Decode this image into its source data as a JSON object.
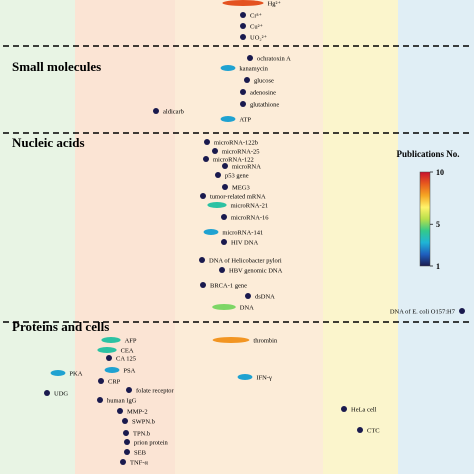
{
  "chart_data": {
    "type": "scatter",
    "colorbar": {
      "title": "Publications No.",
      "ticks": [
        1,
        5,
        10
      ],
      "range": [
        1,
        10
      ],
      "colors": [
        "#1a1a4e",
        "#1f5fbf",
        "#1fb5d6",
        "#33c98a",
        "#b8e04a",
        "#fff36a",
        "#f5a623",
        "#e85a1e",
        "#c8102e"
      ]
    },
    "background_bands": [
      {
        "color": "#e8f4e4"
      },
      {
        "color": "#fbe4d4"
      },
      {
        "color": "#fcecd8"
      },
      {
        "color": "#fbf5cc"
      },
      {
        "color": "#e0eef5"
      },
      {
        "color": "#f3f8fb"
      }
    ],
    "groups": [
      {
        "name": "",
        "points": [
          {
            "label": "Hg²⁺",
            "count": 9
          },
          {
            "label": "Cr³⁺",
            "count": 1
          },
          {
            "label": "Cu²⁺",
            "count": 1
          },
          {
            "label": "UO₂²⁺",
            "count": 1
          }
        ]
      },
      {
        "name": "Small molecules",
        "points": [
          {
            "label": "ochratoxin A",
            "count": 1
          },
          {
            "label": "kanamycin",
            "count": 3
          },
          {
            "label": "glucose",
            "count": 1
          },
          {
            "label": "adenosine",
            "count": 1
          },
          {
            "label": "glutathione",
            "count": 1
          },
          {
            "label": "aldicarb",
            "count": 1
          },
          {
            "label": "ATP",
            "count": 3
          }
        ]
      },
      {
        "name": "Nucleic acids",
        "points": [
          {
            "label": "microRNA-122b",
            "count": 1
          },
          {
            "label": "microRNA-25",
            "count": 1
          },
          {
            "label": "microRNA-122",
            "count": 1
          },
          {
            "label": "microRNA",
            "count": 1
          },
          {
            "label": "p53 gene",
            "count": 1
          },
          {
            "label": "MEG3",
            "count": 1
          },
          {
            "label": "tumor-related mRNA",
            "count": 1
          },
          {
            "label": "microRNA-21",
            "count": 4
          },
          {
            "label": "microRNA-16",
            "count": 1
          },
          {
            "label": "microRNA-141",
            "count": 3
          },
          {
            "label": "HIV DNA",
            "count": 1
          },
          {
            "label": "DNA of Helicobacter pylori",
            "count": 1
          },
          {
            "label": "HBV genomic DNA",
            "count": 1
          },
          {
            "label": "BRCA-1 gene",
            "count": 1
          },
          {
            "label": "dsDNA",
            "count": 1
          },
          {
            "label": "DNA",
            "count": 5
          },
          {
            "label": "DNA of E. coli O157:H7",
            "count": 1
          }
        ]
      },
      {
        "name": "Proteins and cells",
        "points": [
          {
            "label": "AFP",
            "count": 4
          },
          {
            "label": "thrombin",
            "count": 8
          },
          {
            "label": "CEA",
            "count": 4
          },
          {
            "label": "CA 125",
            "count": 1
          },
          {
            "label": "PKA",
            "count": 3
          },
          {
            "label": "PSA",
            "count": 3
          },
          {
            "label": "IFN-γ",
            "count": 3
          },
          {
            "label": "CRP",
            "count": 1
          },
          {
            "label": "UDG",
            "count": 1
          },
          {
            "label": "folate receptor",
            "count": 1
          },
          {
            "label": "human IgG",
            "count": 1
          },
          {
            "label": "HeLa cell",
            "count": 1
          },
          {
            "label": "MMP-2",
            "count": 1
          },
          {
            "label": "SWPN.b",
            "count": 1
          },
          {
            "label": "TPN.b",
            "count": 1
          },
          {
            "label": "CTC",
            "count": 1
          },
          {
            "label": "prion protein",
            "count": 1
          },
          {
            "label": "SEB",
            "count": 1
          },
          {
            "label": "TNF-α",
            "count": 1
          }
        ]
      }
    ]
  }
}
